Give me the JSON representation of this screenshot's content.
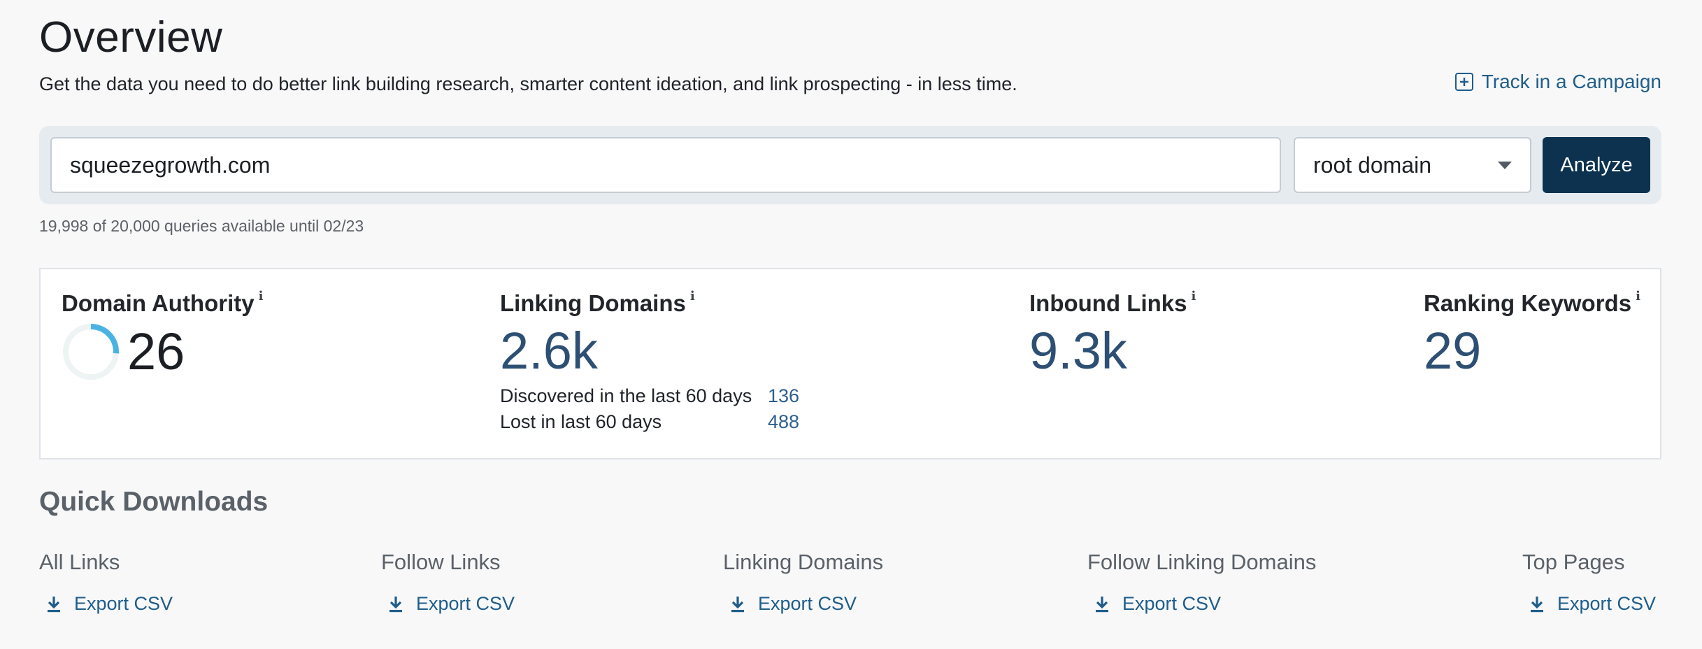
{
  "header": {
    "title": "Overview",
    "subtitle": "Get the data you need to do better link building research, smarter content ideation, and link prospecting - in less time.",
    "track_label": "Track in a Campaign",
    "track_icon": "plus-square-icon"
  },
  "search": {
    "value": "squeezegrowth.com",
    "scope_selected": "root domain",
    "analyze_label": "Analyze",
    "quota_text": "19,998 of 20,000 queries available until 02/23"
  },
  "metrics": {
    "domain_authority": {
      "label": "Domain Authority",
      "value": "26",
      "gauge_fraction": 0.26
    },
    "linking_domains": {
      "label": "Linking Domains",
      "value": "2.6k",
      "discovered_label": "Discovered in the last 60 days",
      "discovered_value": "136",
      "lost_label": "Lost in last 60 days",
      "lost_value": "488"
    },
    "inbound_links": {
      "label": "Inbound Links",
      "value": "9.3k"
    },
    "ranking_keywords": {
      "label": "Ranking Keywords",
      "value": "29"
    },
    "info_glyph": "i"
  },
  "quick_downloads": {
    "title": "Quick Downloads",
    "items": [
      {
        "label": "All Links",
        "action": "Export CSV"
      },
      {
        "label": "Follow Links",
        "action": "Export CSV"
      },
      {
        "label": "Linking Domains",
        "action": "Export CSV"
      },
      {
        "label": "Follow Linking Domains",
        "action": "Export CSV"
      },
      {
        "label": "Top Pages",
        "action": "Export CSV"
      }
    ]
  },
  "colors": {
    "accent": "#1f5d8a",
    "button": "#0c3250",
    "metric_value": "#2d4f73",
    "gauge_fill": "#4bb3e3",
    "gauge_track": "#eef3f3"
  }
}
